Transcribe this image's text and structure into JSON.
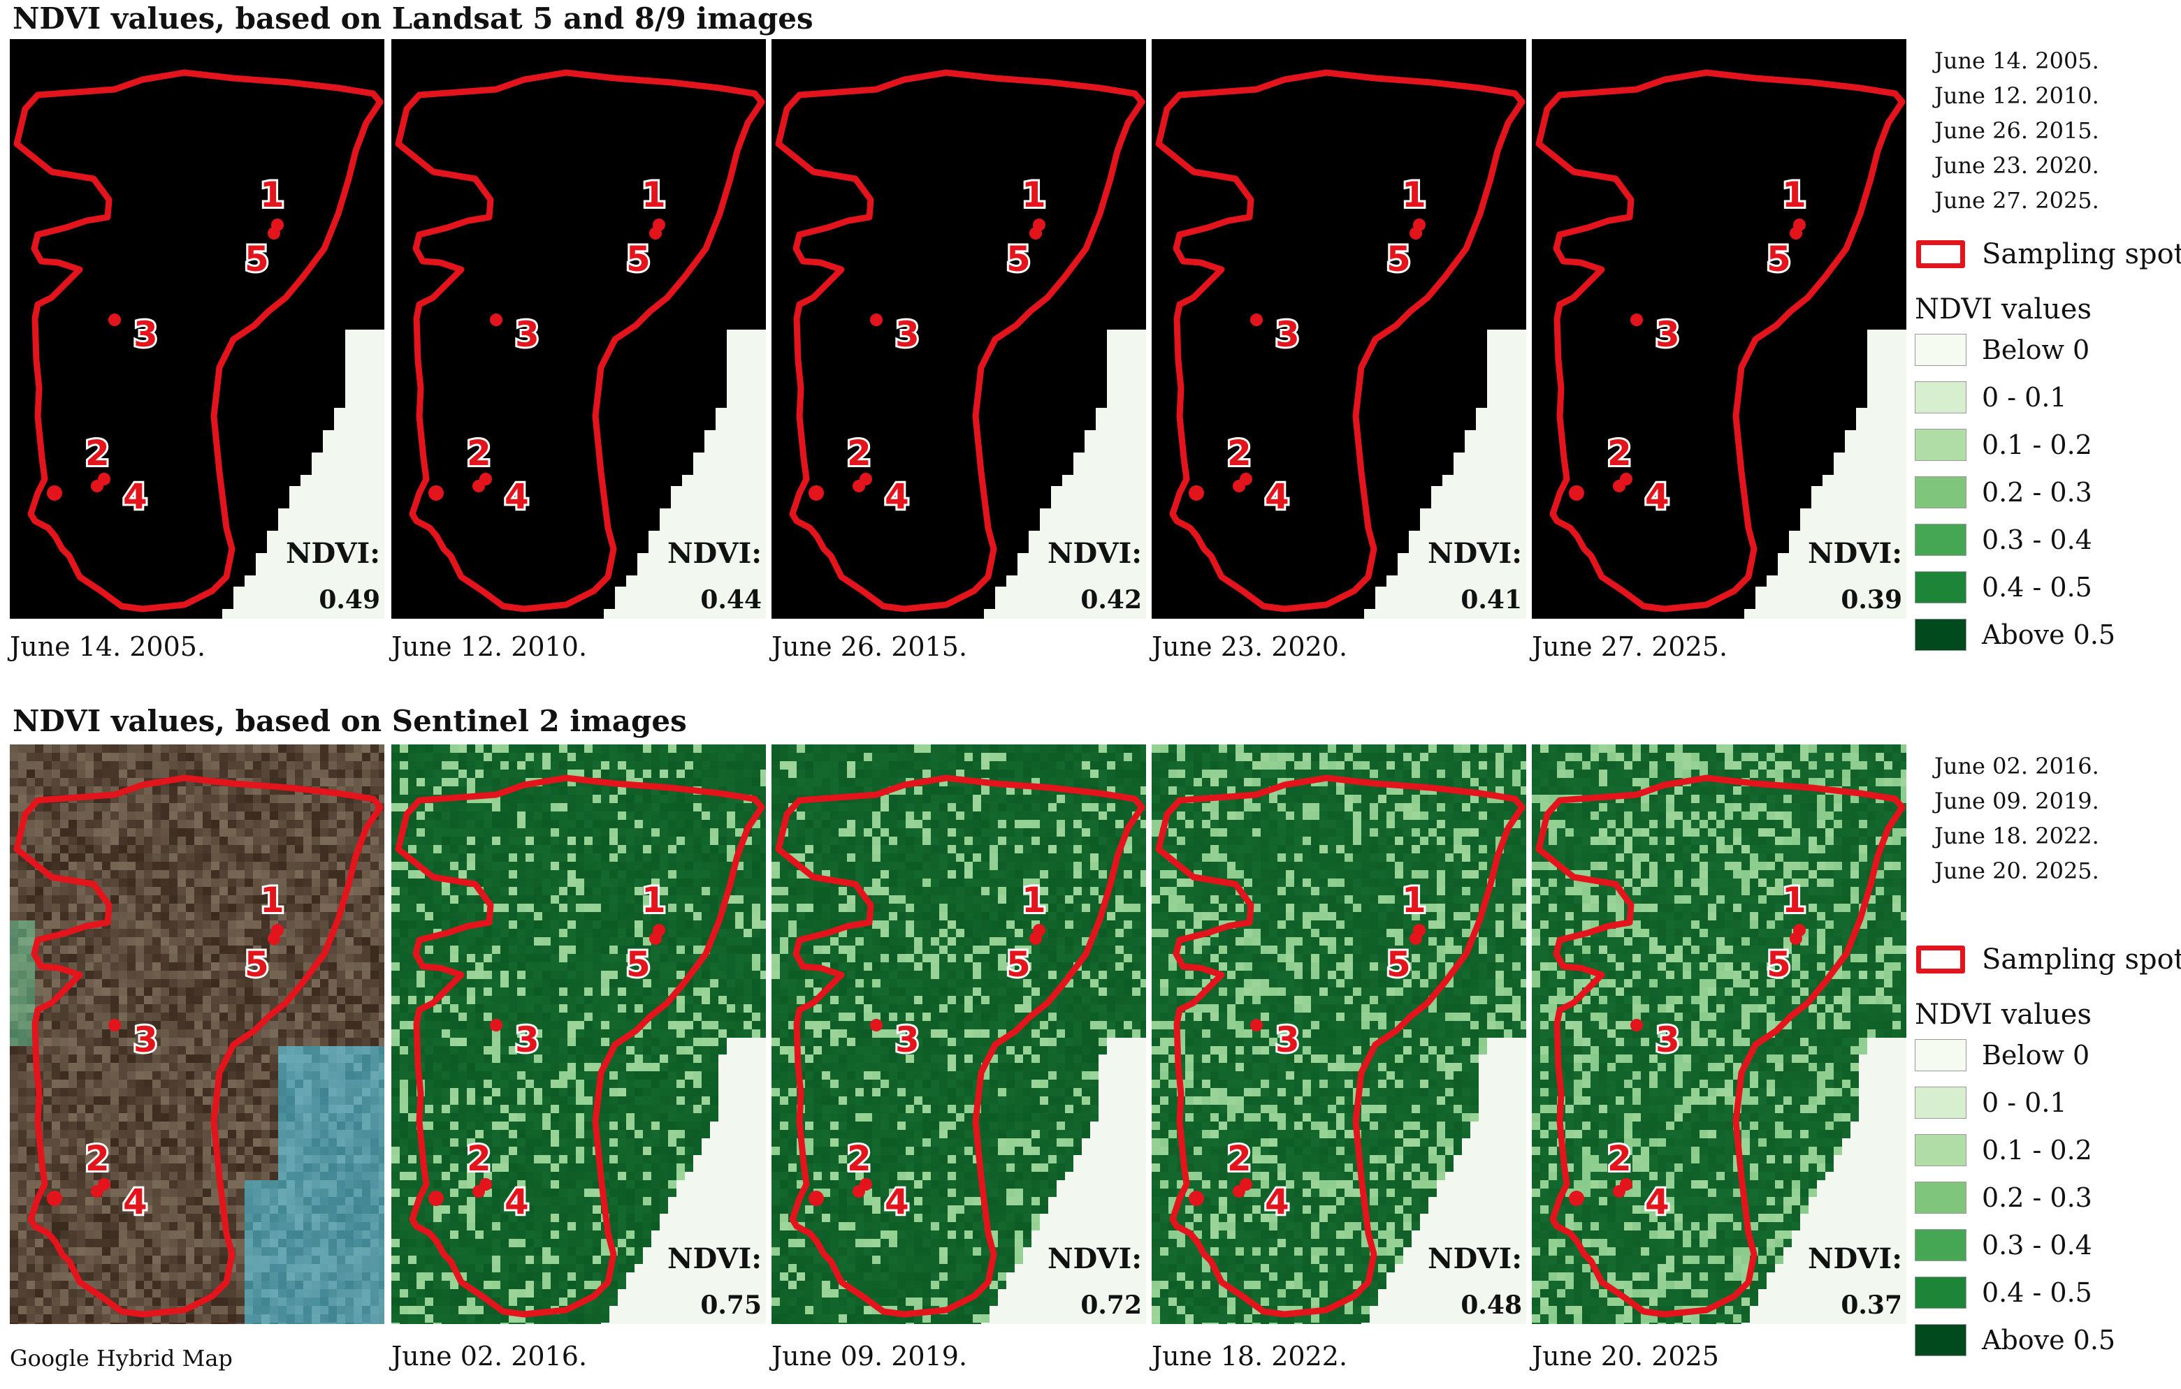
{
  "sections": [
    {
      "title": "NDVI values, based on Landsat 5 and 8/9 images",
      "panels": [
        {
          "date": "June 14. 2005.",
          "ndvi_label": "NDVI:",
          "ndvi": "0.49",
          "kind": "landsat",
          "level": 0.49
        },
        {
          "date": "June 12. 2010.",
          "ndvi_label": "NDVI:",
          "ndvi": "0.44",
          "kind": "landsat",
          "level": 0.44
        },
        {
          "date": "June 26. 2015.",
          "ndvi_label": "NDVI:",
          "ndvi": "0.42",
          "kind": "landsat",
          "level": 0.42
        },
        {
          "date": "June 23. 2020.",
          "ndvi_label": "NDVI:",
          "ndvi": "0.41",
          "kind": "landsat",
          "level": 0.41
        },
        {
          "date": "June 27. 2025.",
          "ndvi_label": "NDVI:",
          "ndvi": "0.39",
          "kind": "landsat",
          "level": 0.39
        }
      ],
      "legend": {
        "dates": [
          "June 14. 2005.",
          "June 12. 2010.",
          "June 26. 2015.",
          "June 23. 2020.",
          "June 27. 2025."
        ],
        "sampling_spot": "Sampling spot",
        "ndvi_title": "NDVI values"
      }
    },
    {
      "title": "NDVI values, based on Sentinel 2 images",
      "panels": [
        {
          "date": "Google Hybrid Map",
          "ndvi_label": "",
          "ndvi": "",
          "kind": "hybrid",
          "level": 0
        },
        {
          "date": "June 02. 2016.",
          "ndvi_label": "NDVI:",
          "ndvi": "0.75",
          "kind": "sentinel",
          "level": 0.75
        },
        {
          "date": "June 09. 2019.",
          "ndvi_label": "NDVI:",
          "ndvi": "0.72",
          "kind": "sentinel",
          "level": 0.72
        },
        {
          "date": "June 18. 2022.",
          "ndvi_label": "NDVI:",
          "ndvi": "0.48",
          "kind": "sentinel",
          "level": 0.48
        },
        {
          "date": "June 20. 2025",
          "ndvi_label": "NDVI:",
          "ndvi": "0.37",
          "kind": "sentinel",
          "level": 0.37
        }
      ],
      "legend": {
        "dates": [
          "June 02. 2016.",
          "June 09. 2019.",
          "June 18. 2022.",
          "June 20. 2025."
        ],
        "sampling_spot": "Sampling spot",
        "ndvi_title": "NDVI values"
      }
    }
  ],
  "ndvi_classes": [
    {
      "label": "Below 0",
      "color": "#f5fbf1"
    },
    {
      "label": "0 - 0.1",
      "color": "#d7efcf"
    },
    {
      "label": "0.1 - 0.2",
      "color": "#b0dda6"
    },
    {
      "label": "0.2 - 0.3",
      "color": "#7fc57c"
    },
    {
      "label": "0.3 - 0.4",
      "color": "#45a653"
    },
    {
      "label": "0.4 - 0.5",
      "color": "#1d8538"
    },
    {
      "label": "Above 0.5",
      "color": "#004a1e"
    }
  ],
  "sampling_points": [
    "1",
    "2",
    "3",
    "4",
    "5"
  ],
  "colors": {
    "outline": "#e3141b",
    "water": "#f2f8ef",
    "hybrid_water": "#5a9aa8"
  }
}
